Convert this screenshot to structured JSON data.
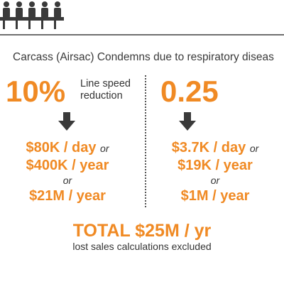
{
  "subtitle": "Carcass (Airsac) Condemns due to respiratory diseas",
  "colors": {
    "accent": "#f08a24",
    "text": "#333333",
    "icon": "#3a3a3a"
  },
  "header": {
    "icon": "people-at-table-icon"
  },
  "left": {
    "headline": "10%",
    "note_line1": "Line speed",
    "note_line2": "reduction",
    "arrow_icon": "down-arrow-icon",
    "per_day": "$80K / day",
    "or1": "or",
    "per_year": "$400K / year",
    "or2": "or",
    "alt_year": "$21M / year"
  },
  "right": {
    "headline": "0.25",
    "arrow_icon": "down-arrow-icon",
    "per_day": "$3.7K / day",
    "or1": "or",
    "per_year": "$19K / year",
    "or2": "or",
    "alt_year": "$1M / year"
  },
  "total": "TOTAL $25M / yr",
  "total_note": "lost sales calculations excluded"
}
